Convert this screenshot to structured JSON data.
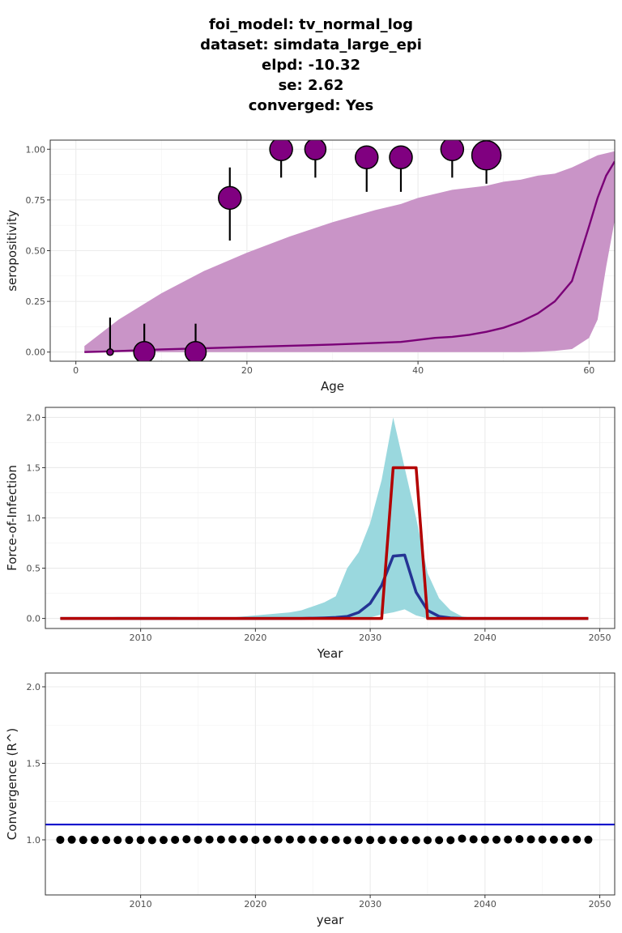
{
  "title_lines": {
    "l1": "foi_model: tv_normal_log",
    "l2": "dataset: simdata_large_epi",
    "l3": "elpd: -10.32",
    "l4": "se: 2.62",
    "l5": "converged: Yes"
  },
  "colors": {
    "purple_points": "#800080",
    "purple_band": "#c994c7",
    "purple_line": "#7a0177",
    "teal_band": "#9ad8de",
    "blue_line": "#253494",
    "red_line": "#b30000",
    "rhat_line": "#0000cc"
  },
  "chart_data": [
    {
      "type": "scatter",
      "panel": "seroprevalence",
      "xlabel": "Age",
      "ylabel": "seropositivity",
      "xlim": [
        -3,
        63
      ],
      "ylim": [
        -0.045,
        1.045
      ],
      "x_ticks": [
        0,
        20,
        40,
        60
      ],
      "y_ticks": [
        0.0,
        0.25,
        0.5,
        0.75,
        1.0
      ],
      "x_tick_labels": [
        "0",
        "20",
        "40",
        "60"
      ],
      "y_tick_labels": [
        "0.00",
        "0.25",
        "0.50",
        "0.75",
        "1.00"
      ],
      "grid": true,
      "points": [
        {
          "age": 4,
          "prev": 0.0,
          "lower": 0.0,
          "upper": 0.17,
          "size": 4
        },
        {
          "age": 8,
          "prev": 0.0,
          "lower": 0.0,
          "upper": 0.14,
          "size": 13
        },
        {
          "age": 14,
          "prev": 0.0,
          "lower": 0.0,
          "upper": 0.14,
          "size": 13
        },
        {
          "age": 18,
          "prev": 0.76,
          "lower": 0.55,
          "upper": 0.91,
          "size": 14
        },
        {
          "age": 24,
          "prev": 1.0,
          "lower": 0.86,
          "upper": 1.0,
          "size": 14
        },
        {
          "age": 28,
          "prev": 1.0,
          "lower": 0.86,
          "upper": 1.0,
          "size": 13
        },
        {
          "age": 34,
          "prev": 0.96,
          "lower": 0.79,
          "upper": 1.0,
          "size": 14
        },
        {
          "age": 38,
          "prev": 0.96,
          "lower": 0.79,
          "upper": 1.0,
          "size": 14
        },
        {
          "age": 44,
          "prev": 1.0,
          "lower": 0.86,
          "upper": 1.0,
          "size": 14
        },
        {
          "age": 48,
          "prev": 0.97,
          "lower": 0.83,
          "upper": 1.0,
          "size": 18
        }
      ],
      "fit_age": [
        1,
        5,
        10,
        15,
        20,
        25,
        30,
        35,
        38,
        40,
        42,
        44,
        46,
        48,
        50,
        52,
        54,
        56,
        58,
        60,
        61,
        62,
        63
      ],
      "fit_median": [
        0.0,
        0.005,
        0.013,
        0.019,
        0.025,
        0.031,
        0.037,
        0.045,
        0.05,
        0.06,
        0.07,
        0.075,
        0.085,
        0.1,
        0.12,
        0.15,
        0.19,
        0.25,
        0.35,
        0.62,
        0.76,
        0.87,
        0.94
      ],
      "fit_lower": [
        0.0,
        0.0,
        0.0,
        0.0,
        0.0,
        0.0,
        0.0,
        0.0,
        0.0,
        0.0,
        0.0,
        0.0,
        0.0,
        0.0,
        0.0,
        0.0,
        0.002,
        0.006,
        0.015,
        0.07,
        0.16,
        0.42,
        0.65
      ],
      "fit_upper": [
        0.03,
        0.16,
        0.29,
        0.4,
        0.49,
        0.57,
        0.64,
        0.7,
        0.73,
        0.76,
        0.78,
        0.8,
        0.81,
        0.82,
        0.84,
        0.85,
        0.87,
        0.88,
        0.91,
        0.95,
        0.97,
        0.98,
        0.99
      ]
    },
    {
      "type": "line",
      "panel": "force_of_infection",
      "xlabel": "Year",
      "ylabel": "Force-of-Infection",
      "xlim": [
        2001.7,
        2051.3
      ],
      "ylim": [
        -0.1,
        2.1
      ],
      "x_ticks": [
        2010,
        2020,
        2030,
        2040,
        2050
      ],
      "y_ticks": [
        0.0,
        0.5,
        1.0,
        1.5,
        2.0
      ],
      "x_tick_labels": [
        "2010",
        "2020",
        "2030",
        "2040",
        "2050"
      ],
      "y_tick_labels": [
        "0.0",
        "0.5",
        "1.0",
        "1.5",
        "2.0"
      ],
      "grid": true,
      "x": [
        2003,
        2004,
        2005,
        2006,
        2007,
        2008,
        2009,
        2010,
        2011,
        2012,
        2013,
        2014,
        2015,
        2016,
        2017,
        2018,
        2019,
        2020,
        2021,
        2022,
        2023,
        2024,
        2025,
        2026,
        2027,
        2028,
        2029,
        2030,
        2031,
        2032,
        2033,
        2034,
        2035,
        2036,
        2037,
        2038,
        2039,
        2040,
        2041,
        2042,
        2043,
        2044,
        2045,
        2046,
        2047,
        2048,
        2049
      ],
      "band_upper": [
        0.0,
        0.01,
        0.01,
        0.01,
        0.01,
        0.015,
        0.015,
        0.015,
        0.015,
        0.015,
        0.015,
        0.01,
        0.01,
        0.01,
        0.01,
        0.01,
        0.02,
        0.03,
        0.04,
        0.05,
        0.06,
        0.08,
        0.12,
        0.16,
        0.22,
        0.5,
        0.66,
        0.95,
        1.38,
        2.0,
        1.5,
        1.0,
        0.45,
        0.2,
        0.08,
        0.02,
        0.005,
        0.0,
        0.0,
        0.0,
        0.0,
        0.0,
        0.0,
        0.0,
        0.0,
        0.0,
        0.0
      ],
      "band_lower": [
        0.0,
        0.0,
        0.0,
        0.0,
        0.0,
        0.0,
        0.0,
        0.0,
        0.0,
        0.0,
        0.0,
        0.0,
        0.0,
        0.0,
        0.0,
        0.0,
        0.0,
        0.0,
        0.0,
        0.0,
        0.0,
        0.0,
        0.0,
        0.0,
        0.0,
        0.0,
        0.005,
        0.01,
        0.04,
        0.06,
        0.09,
        0.03,
        0.0,
        0.0,
        0.0,
        0.0,
        0.0,
        0.0,
        0.0,
        0.0,
        0.0,
        0.0,
        0.0,
        0.0,
        0.0,
        0.0,
        0.0
      ],
      "series": [
        {
          "values": [
            0.0,
            0.0,
            0.0,
            0.0,
            0.0,
            0.0,
            0.0,
            0.0,
            0.0,
            0.0,
            0.0,
            0.0,
            0.0,
            0.0,
            0.0,
            0.0,
            0.0,
            0.0,
            0.0,
            0.0,
            0.0,
            0.0,
            0.002,
            0.005,
            0.01,
            0.02,
            0.06,
            0.15,
            0.33,
            0.62,
            0.63,
            0.26,
            0.08,
            0.02,
            0.005,
            0.0,
            0.0,
            0.0,
            0.0,
            0.0,
            0.0,
            0.0,
            0.0,
            0.0,
            0.0,
            0.0,
            0.0
          ]
        },
        {
          "x": [
            2003,
            2031,
            2032,
            2034,
            2035,
            2049
          ],
          "values": [
            0.0,
            0.0,
            1.5,
            1.5,
            0.0,
            0.0
          ]
        }
      ]
    },
    {
      "type": "scatter",
      "panel": "convergence",
      "xlabel": "year",
      "ylabel": "Convergence (R^)",
      "xlim": [
        2001.7,
        2051.3
      ],
      "ylim": [
        0.64,
        2.09
      ],
      "x_ticks": [
        2010,
        2020,
        2030,
        2040,
        2050
      ],
      "y_ticks": [
        1.0,
        1.5,
        2.0
      ],
      "x_tick_labels": [
        "2010",
        "2020",
        "2030",
        "2040",
        "2050"
      ],
      "y_tick_labels": [
        "1.0",
        "1.5",
        "2.0"
      ],
      "grid": true,
      "reference_line": 1.1,
      "x": [
        2003,
        2004,
        2005,
        2006,
        2007,
        2008,
        2009,
        2010,
        2011,
        2012,
        2013,
        2014,
        2015,
        2016,
        2017,
        2018,
        2019,
        2020,
        2021,
        2022,
        2023,
        2024,
        2025,
        2026,
        2027,
        2028,
        2029,
        2030,
        2031,
        2032,
        2033,
        2034,
        2035,
        2036,
        2037,
        2038,
        2039,
        2040,
        2041,
        2042,
        2043,
        2044,
        2045,
        2046,
        2047,
        2048,
        2049
      ],
      "values": [
        1.0,
        1.001,
        0.999,
        0.999,
        0.999,
        0.999,
        0.999,
        0.999,
        0.998,
        0.999,
        1.0,
        1.004,
        1.0,
        1.002,
        1.002,
        1.003,
        1.003,
        1.0,
        1.001,
        1.002,
        1.002,
        1.002,
        1.001,
        1.0,
        1.0,
        0.998,
        0.999,
        0.999,
        0.999,
        0.999,
        0.999,
        0.998,
        0.998,
        0.998,
        0.998,
        1.008,
        1.003,
        1.001,
        1.001,
        1.002,
        1.005,
        1.003,
        1.002,
        1.001,
        1.002,
        1.002,
        1.001
      ]
    }
  ]
}
